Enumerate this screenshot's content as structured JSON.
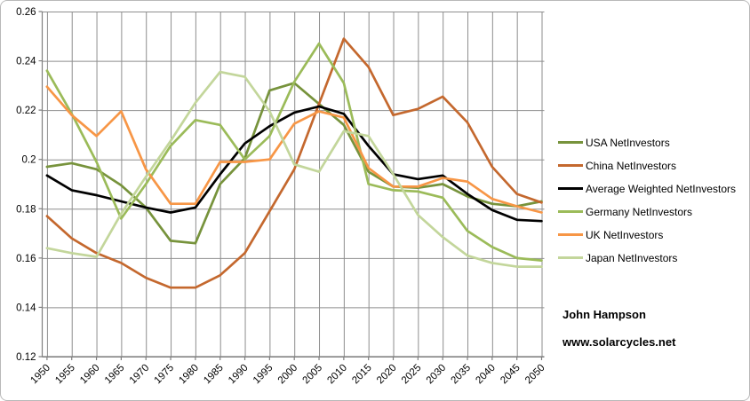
{
  "chart_data": {
    "type": "line",
    "title": "",
    "xlabel": "",
    "ylabel": "",
    "ylim": [
      0.12,
      0.26
    ],
    "y_ticks": [
      "0.26",
      "0.24",
      "0.22",
      "0.2",
      "0.18",
      "0.16",
      "0.14",
      "0.12"
    ],
    "y_tick_values": [
      0.26,
      0.24,
      0.22,
      0.2,
      0.18,
      0.16,
      0.14,
      0.12
    ],
    "x_labels": [
      "1950",
      "1955",
      "1960",
      "1965",
      "1970",
      "1975",
      "1980",
      "1985",
      "1990",
      "1995",
      "2000",
      "2005",
      "2010",
      "2015",
      "2020",
      "2025",
      "2030",
      "2035",
      "2040",
      "2045",
      "2050"
    ],
    "grid": "both",
    "legend_position": "right",
    "series": [
      {
        "name": "USA NetInvestors",
        "color": "#77933C",
        "values": [
          0.197,
          0.1985,
          0.196,
          0.1895,
          0.1805,
          0.167,
          0.166,
          0.19,
          0.2005,
          0.228,
          0.231,
          0.2225,
          0.214,
          0.195,
          0.189,
          0.1885,
          0.19,
          0.185,
          0.182,
          0.181,
          0.183
        ]
      },
      {
        "name": "China NetInvestors",
        "color": "#C4682E",
        "values": [
          0.177,
          0.168,
          0.162,
          0.158,
          0.152,
          0.148,
          0.148,
          0.153,
          0.162,
          0.179,
          0.196,
          0.2225,
          0.249,
          0.2375,
          0.218,
          0.2205,
          0.2255,
          0.215,
          0.197,
          0.186,
          0.1825
        ]
      },
      {
        "name": "Average Weighted NetInvestors",
        "color": "#000000",
        "values": [
          0.1935,
          0.1875,
          0.1855,
          0.183,
          0.1805,
          0.1785,
          0.1805,
          0.194,
          0.2065,
          0.2135,
          0.219,
          0.2215,
          0.2185,
          0.2055,
          0.194,
          0.192,
          0.1935,
          0.186,
          0.1795,
          0.1755,
          0.175
        ]
      },
      {
        "name": "Germany NetInvestors",
        "color": "#9BBB59",
        "values": [
          0.236,
          0.2185,
          0.199,
          0.176,
          0.19,
          0.2055,
          0.216,
          0.214,
          0.2,
          0.2095,
          0.2315,
          0.247,
          0.231,
          0.19,
          0.1875,
          0.187,
          0.1845,
          0.171,
          0.1645,
          0.16,
          0.159
        ]
      },
      {
        "name": "UK NetInvestors",
        "color": "#F79646",
        "values": [
          0.2295,
          0.218,
          0.2095,
          0.2195,
          0.196,
          0.182,
          0.182,
          0.199,
          0.199,
          0.2,
          0.2145,
          0.2195,
          0.217,
          0.1965,
          0.189,
          0.189,
          0.1925,
          0.191,
          0.184,
          0.181,
          0.1785
        ]
      },
      {
        "name": "Japan NetInvestors",
        "color": "#C3D69B",
        "values": [
          0.164,
          0.162,
          0.1605,
          0.178,
          0.193,
          0.2075,
          0.223,
          0.2355,
          0.2335,
          0.2195,
          0.198,
          0.195,
          0.2115,
          0.2095,
          0.194,
          0.1775,
          0.1685,
          0.161,
          0.158,
          0.1565,
          0.1565
        ]
      }
    ],
    "annotations": [
      "John Hampson",
      "www.solarcycles.net"
    ]
  },
  "annotation": {
    "author": "John Hampson",
    "website": "www.solarcycles.net"
  }
}
